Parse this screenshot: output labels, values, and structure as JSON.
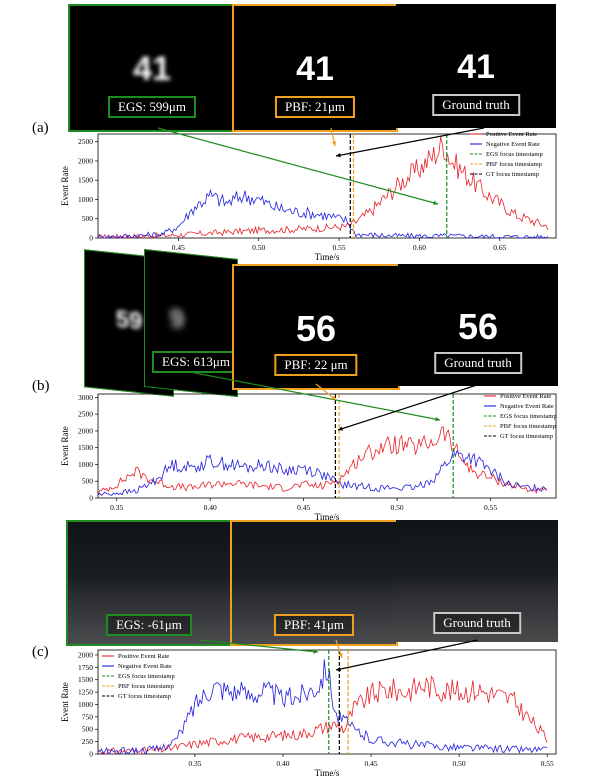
{
  "panels": [
    {
      "label": "(a)",
      "digits": "41",
      "captions": {
        "egs": "EGS: 599μm",
        "pbf": "PBF: 21μm",
        "gt": "Ground truth"
      },
      "legend": [
        "Positive Event Rate",
        "Negative Event Rate",
        "EGS focus timestamp",
        "PBF focus timestamp",
        "GT focus timestamp"
      ]
    },
    {
      "label": "(b)",
      "digits": "56",
      "ghost_digit": "9",
      "side_digits": "59",
      "captions": {
        "egs": "EGS: 613μm",
        "pbf": "PBF: 22 μm",
        "gt": "Ground truth"
      },
      "legend": [
        "Positive Event Rate",
        "Negative Event Rate",
        "EGS focus timestamp",
        "PBF focus timestamp",
        "GT focus timestamp"
      ]
    },
    {
      "label": "(c)",
      "captions": {
        "egs": "EGS: -61μm",
        "pbf": "PBF: 41μm",
        "gt": "Ground truth"
      },
      "legend": [
        "Positive Event Rate",
        "Negative Event Rate",
        "EGS focus timestamp",
        "PBF focus timestamp",
        "GT focus timestamp"
      ]
    }
  ],
  "colors": {
    "egs": "#1e8c1e",
    "pbf": "#f0a020",
    "gt": "#000000",
    "pos": "#e8222a",
    "neg": "#2020e0",
    "gt_box": "#c8c8c8"
  },
  "chart_data": [
    {
      "type": "line",
      "xlabel": "Time/s",
      "ylabel": "Event Rate",
      "xlim": [
        0.4,
        0.685
      ],
      "ylim": [
        0,
        2700
      ],
      "xticks": [
        0.45,
        0.5,
        0.55,
        0.6,
        0.65
      ],
      "yticks": [
        0,
        500,
        1000,
        1500,
        2000,
        2500
      ],
      "legend_position": "top-right",
      "series": [
        {
          "name": "Positive Event Rate",
          "x": [
            0.4,
            0.42,
            0.44,
            0.46,
            0.48,
            0.5,
            0.52,
            0.54,
            0.555,
            0.56,
            0.57,
            0.58,
            0.59,
            0.6,
            0.61,
            0.615,
            0.62,
            0.63,
            0.64,
            0.65,
            0.66,
            0.67,
            0.68
          ],
          "y": [
            30,
            40,
            60,
            100,
            150,
            200,
            220,
            260,
            300,
            400,
            700,
            1100,
            1500,
            1800,
            2200,
            2450,
            2000,
            1600,
            1200,
            900,
            600,
            450,
            300
          ]
        },
        {
          "name": "Negative Event Rate",
          "x": [
            0.4,
            0.42,
            0.44,
            0.45,
            0.46,
            0.47,
            0.48,
            0.49,
            0.5,
            0.51,
            0.52,
            0.53,
            0.54,
            0.55,
            0.555,
            0.56,
            0.58,
            0.6,
            0.62,
            0.64,
            0.66,
            0.68
          ],
          "y": [
            30,
            50,
            100,
            300,
            800,
            1100,
            900,
            1100,
            1000,
            800,
            700,
            650,
            600,
            500,
            450,
            100,
            60,
            50,
            50,
            40,
            30,
            20
          ]
        }
      ],
      "vlines": [
        {
          "name": "EGS focus timestamp",
          "x": 0.617
        },
        {
          "name": "PBF focus timestamp",
          "x": 0.559
        },
        {
          "name": "GT focus timestamp",
          "x": 0.557
        }
      ]
    },
    {
      "type": "line",
      "xlabel": "Time/s",
      "ylabel": "Event Rate",
      "xlim": [
        0.34,
        0.585
      ],
      "ylim": [
        0,
        3100
      ],
      "xticks": [
        0.35,
        0.4,
        0.45,
        0.5,
        0.55
      ],
      "yticks": [
        0,
        500,
        1000,
        1500,
        2000,
        2500,
        3000
      ],
      "legend_position": "top-right",
      "series": [
        {
          "name": "Positive Event Rate",
          "x": [
            0.34,
            0.35,
            0.36,
            0.37,
            0.38,
            0.39,
            0.4,
            0.41,
            0.42,
            0.43,
            0.44,
            0.45,
            0.46,
            0.47,
            0.48,
            0.49,
            0.5,
            0.51,
            0.52,
            0.525,
            0.53,
            0.54,
            0.55,
            0.56,
            0.57,
            0.58
          ],
          "y": [
            150,
            400,
            800,
            500,
            350,
            300,
            400,
            450,
            400,
            350,
            300,
            400,
            350,
            600,
            1200,
            1500,
            1600,
            1500,
            1700,
            2000,
            1500,
            800,
            600,
            400,
            250,
            200
          ]
        },
        {
          "name": "Negative Event Rate",
          "x": [
            0.34,
            0.35,
            0.36,
            0.37,
            0.38,
            0.39,
            0.4,
            0.41,
            0.42,
            0.43,
            0.44,
            0.45,
            0.46,
            0.47,
            0.48,
            0.49,
            0.5,
            0.51,
            0.52,
            0.53,
            0.54,
            0.55,
            0.56,
            0.57,
            0.58
          ],
          "y": [
            100,
            150,
            200,
            500,
            1000,
            900,
            1100,
            1000,
            900,
            1000,
            800,
            900,
            700,
            400,
            350,
            300,
            300,
            300,
            600,
            1300,
            1200,
            800,
            400,
            300,
            300
          ]
        }
      ],
      "vlines": [
        {
          "name": "EGS focus timestamp",
          "x": 0.53
        },
        {
          "name": "PBF focus timestamp",
          "x": 0.469
        },
        {
          "name": "GT focus timestamp",
          "x": 0.467
        }
      ]
    },
    {
      "type": "line",
      "xlabel": "Time/s",
      "ylabel": "Event Rate",
      "xlim": [
        0.295,
        0.555
      ],
      "ylim": [
        0,
        2100
      ],
      "xticks": [
        0.35,
        0.4,
        0.45,
        0.5,
        0.55
      ],
      "yticks": [
        0,
        250,
        500,
        750,
        1000,
        1250,
        1500,
        1750,
        2000
      ],
      "legend_position": "top-left",
      "series": [
        {
          "name": "Positive Event Rate",
          "x": [
            0.295,
            0.31,
            0.33,
            0.35,
            0.37,
            0.39,
            0.41,
            0.42,
            0.43,
            0.435,
            0.44,
            0.45,
            0.46,
            0.47,
            0.48,
            0.49,
            0.5,
            0.51,
            0.52,
            0.53,
            0.54,
            0.55
          ],
          "y": [
            50,
            60,
            80,
            200,
            300,
            350,
            400,
            500,
            600,
            500,
            900,
            1200,
            1300,
            1250,
            1400,
            1300,
            1250,
            1300,
            1200,
            1100,
            700,
            300
          ]
        },
        {
          "name": "Negative Event Rate",
          "x": [
            0.295,
            0.31,
            0.33,
            0.34,
            0.35,
            0.36,
            0.37,
            0.38,
            0.39,
            0.4,
            0.41,
            0.42,
            0.425,
            0.43,
            0.44,
            0.45,
            0.47,
            0.49,
            0.51,
            0.53,
            0.55
          ],
          "y": [
            50,
            60,
            100,
            300,
            1000,
            1400,
            1300,
            1200,
            1300,
            1100,
            1200,
            1400,
            1800,
            800,
            500,
            300,
            200,
            150,
            120,
            100,
            80
          ]
        }
      ],
      "vlines": [
        {
          "name": "EGS focus timestamp",
          "x": 0.426
        },
        {
          "name": "PBF focus timestamp",
          "x": 0.437
        },
        {
          "name": "GT focus timestamp",
          "x": 0.432
        }
      ]
    }
  ]
}
